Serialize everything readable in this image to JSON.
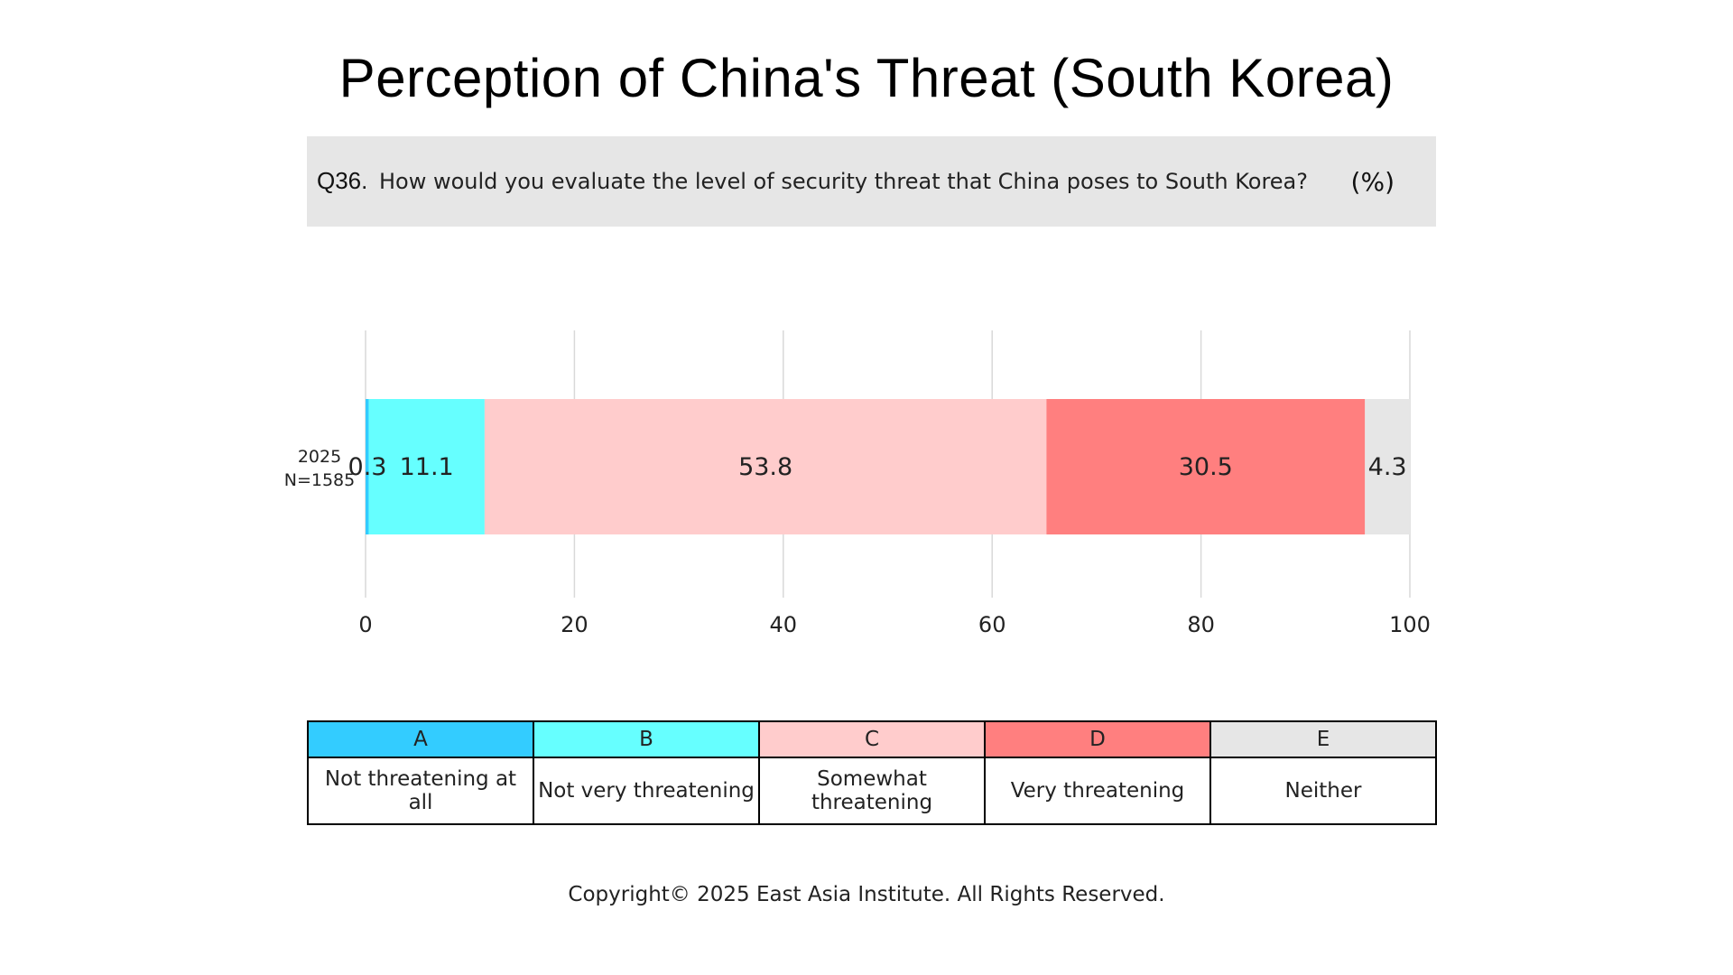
{
  "page": {
    "title": "Perception of China's Threat (South Korea)",
    "question": {
      "number": "Q36.",
      "text": "How would you evaluate the level of security threat that China poses to South Korea?",
      "unit": "(%)"
    },
    "copyright": "Copyright© 2025 East Asia Institute. All Rights Reserved."
  },
  "legend": [
    {
      "code": "A",
      "label": "Not threatening at all",
      "color": "#33ccff"
    },
    {
      "code": "B",
      "label": "Not very threatening",
      "color": "#66ffff"
    },
    {
      "code": "C",
      "label": "Somewhat threatening",
      "color": "#ffcccc"
    },
    {
      "code": "D",
      "label": "Very threatening",
      "color": "#ff7f7f"
    },
    {
      "code": "E",
      "label": "Neither",
      "color": "#e6e6e6"
    }
  ],
  "chart_data": {
    "type": "bar",
    "orientation": "horizontal",
    "stacked": true,
    "categories": [
      "2025\nN=1585"
    ],
    "category_lines": [
      [
        "2025",
        "N=1585"
      ]
    ],
    "series": [
      {
        "name": "A",
        "values": [
          0.3
        ],
        "label": "0.3",
        "color": "#33ccff"
      },
      {
        "name": "B",
        "values": [
          11.1
        ],
        "label": "11.1",
        "color": "#66ffff"
      },
      {
        "name": "C",
        "values": [
          53.8
        ],
        "label": "53.8",
        "color": "#ffcccc"
      },
      {
        "name": "D",
        "values": [
          30.5
        ],
        "label": "30.5",
        "color": "#ff7f7f"
      },
      {
        "name": "E",
        "values": [
          4.3
        ],
        "label": "4.3",
        "color": "#e6e6e6"
      }
    ],
    "xlim": [
      0,
      100
    ],
    "xticks": [
      "0",
      "20",
      "40",
      "60",
      "80",
      "100"
    ],
    "xtick_values": [
      0,
      20,
      40,
      60,
      80,
      100
    ],
    "grid": true,
    "gridline_color": "#d9d9d9"
  }
}
